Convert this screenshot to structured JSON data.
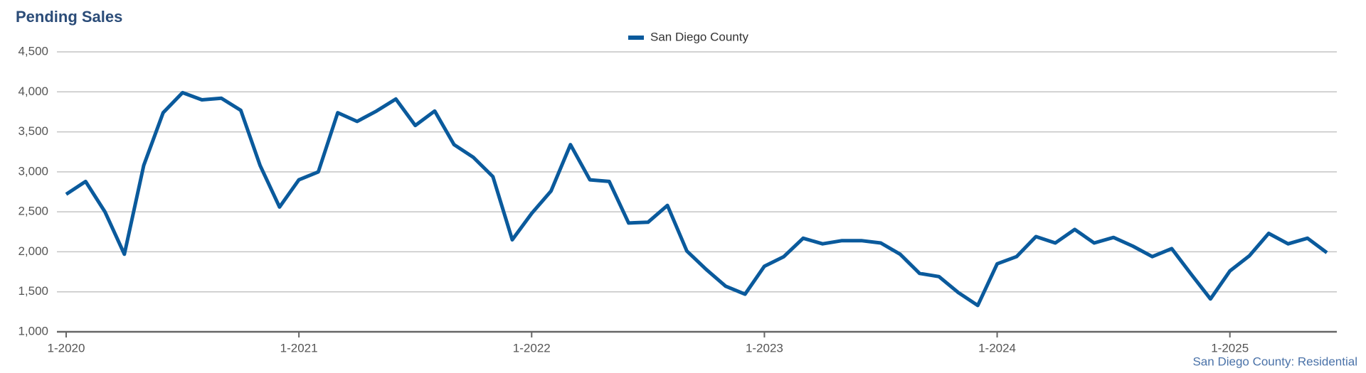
{
  "chart_data": {
    "type": "line",
    "title": "Pending Sales",
    "source": "San Diego County: Residential",
    "categories": [
      "1-2020",
      null,
      null,
      null,
      null,
      null,
      null,
      null,
      null,
      null,
      null,
      null,
      "1-2021",
      null,
      null,
      null,
      null,
      null,
      null,
      null,
      null,
      null,
      null,
      null,
      "1-2022",
      null,
      null,
      null,
      null,
      null,
      null,
      null,
      null,
      null,
      null,
      null,
      "1-2023",
      null,
      null,
      null,
      null,
      null,
      null,
      null,
      null,
      null,
      null,
      null,
      "1-2024",
      null,
      null,
      null,
      null,
      null,
      null,
      null,
      null,
      null,
      null,
      null,
      "1-2025",
      null,
      null,
      null,
      null,
      null
    ],
    "series": [
      {
        "name": "San Diego County",
        "color": "#0a5a9c",
        "values": [
          2720,
          2880,
          2500,
          1970,
          3080,
          3740,
          3990,
          3900,
          3920,
          3770,
          3080,
          2560,
          2900,
          3000,
          3740,
          3630,
          3760,
          3910,
          3580,
          3760,
          3340,
          3180,
          2940,
          2150,
          2480,
          2760,
          3340,
          2900,
          2880,
          2360,
          2370,
          2580,
          2010,
          1780,
          1570,
          1470,
          1820,
          1940,
          2170,
          2100,
          2140,
          2140,
          2110,
          1970,
          1730,
          1690,
          1490,
          1330,
          1850,
          1940,
          2190,
          2110,
          2280,
          2110,
          2180,
          2070,
          1940,
          2040,
          1720,
          1410,
          1760,
          1950,
          2230,
          2100,
          2170,
          1990
        ]
      }
    ],
    "ylim": [
      1000,
      4500
    ],
    "yticks": [
      {
        "value": 1000,
        "label": "1,000"
      },
      {
        "value": 1500,
        "label": "1,500"
      },
      {
        "value": 2000,
        "label": "2,000"
      },
      {
        "value": 2500,
        "label": "2,500"
      },
      {
        "value": 3000,
        "label": "3,000"
      },
      {
        "value": 3500,
        "label": "3,500"
      },
      {
        "value": 4000,
        "label": "4,000"
      },
      {
        "value": 4500,
        "label": "4,500"
      }
    ],
    "grid": true,
    "legend": "top"
  }
}
